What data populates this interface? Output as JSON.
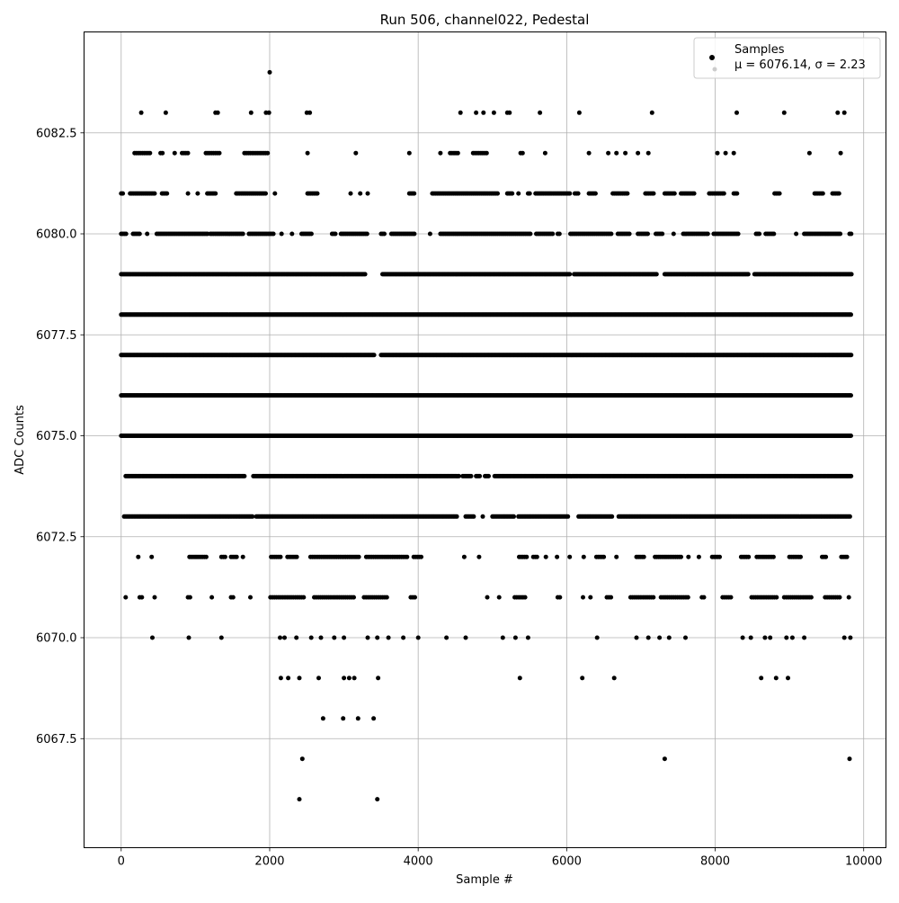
{
  "chart_data": {
    "type": "scatter",
    "title": "Run 506, channel022, Pedestal",
    "xlabel": "Sample #",
    "ylabel": "ADC Counts",
    "xlim": [
      -500,
      10300
    ],
    "ylim": [
      6064.8,
      6085.0
    ],
    "x_ticks": [
      0,
      2000,
      4000,
      6000,
      8000,
      10000
    ],
    "x_tick_labels": [
      "0",
      "2000",
      "4000",
      "6000",
      "8000",
      "10000"
    ],
    "y_ticks": [
      6067.5,
      6070.0,
      6072.5,
      6075.0,
      6077.5,
      6080.0,
      6082.5
    ],
    "y_tick_labels": [
      "6067.5",
      "6070.0",
      "6072.5",
      "6075.0",
      "6077.5",
      "6080.0",
      "6082.5"
    ],
    "grid": true,
    "legend_position": "top-right",
    "legend": {
      "samples_label": "Samples",
      "stats_label": "μ = 6076.14, σ = 2.23"
    },
    "point_color": "#000000",
    "series": [
      {
        "name": "Samples",
        "points": [
          [
            2000,
            6084
          ],
          [
            2400,
            6066
          ],
          [
            3450,
            6066
          ],
          [
            2440,
            6067
          ],
          [
            7320,
            6067
          ],
          [
            9810,
            6067
          ],
          [
            2720,
            6068
          ],
          [
            2990,
            6068
          ],
          [
            3190,
            6068
          ],
          [
            3400,
            6068
          ],
          [
            2150,
            6069
          ],
          [
            2250,
            6069
          ],
          [
            2400,
            6069
          ],
          [
            2660,
            6069
          ],
          [
            3000,
            6069
          ],
          [
            3070,
            6069
          ],
          [
            3140,
            6069
          ],
          [
            3460,
            6069
          ],
          [
            5370,
            6069
          ],
          [
            6210,
            6069
          ],
          [
            6640,
            6069
          ],
          [
            8620,
            6069
          ],
          [
            8820,
            6069
          ],
          [
            8980,
            6069
          ],
          [
            270,
            6083
          ],
          [
            600,
            6083
          ],
          [
            1270,
            6083
          ],
          [
            1300,
            6083
          ],
          [
            1750,
            6083
          ],
          [
            1950,
            6083
          ],
          [
            1990,
            6083
          ],
          [
            2500,
            6083
          ],
          [
            2540,
            6083
          ],
          [
            4570,
            6083
          ],
          [
            4780,
            6083
          ],
          [
            4880,
            6083
          ],
          [
            5020,
            6083
          ],
          [
            5200,
            6083
          ],
          [
            5230,
            6083
          ],
          [
            5640,
            6083
          ],
          [
            6170,
            6083
          ],
          [
            7150,
            6083
          ],
          [
            8290,
            6083
          ],
          [
            8930,
            6083
          ],
          [
            9650,
            6083
          ],
          [
            9740,
            6083
          ],
          [
            420,
            6070
          ],
          [
            910,
            6070
          ],
          [
            1350,
            6070
          ],
          [
            2140,
            6070
          ],
          [
            2200,
            6070
          ],
          [
            2360,
            6070
          ],
          [
            2560,
            6070
          ],
          [
            2690,
            6070
          ],
          [
            2870,
            6070
          ],
          [
            3000,
            6070
          ],
          [
            3320,
            6070
          ],
          [
            3450,
            6070
          ],
          [
            3600,
            6070
          ],
          [
            3800,
            6070
          ],
          [
            4000,
            6070
          ],
          [
            4380,
            6070
          ],
          [
            4640,
            6070
          ],
          [
            5140,
            6070
          ],
          [
            5310,
            6070
          ],
          [
            5480,
            6070
          ],
          [
            6410,
            6070
          ],
          [
            6940,
            6070
          ],
          [
            7100,
            6070
          ],
          [
            7250,
            6070
          ],
          [
            7380,
            6070
          ],
          [
            7600,
            6070
          ],
          [
            8370,
            6070
          ],
          [
            8480,
            6070
          ],
          [
            8670,
            6070
          ],
          [
            8740,
            6070
          ],
          [
            8960,
            6070
          ],
          [
            9040,
            6070
          ],
          [
            9200,
            6070
          ],
          [
            9740,
            6070
          ],
          [
            9820,
            6070
          ]
        ]
      }
    ],
    "dense_levels": [
      {
        "y": 6071,
        "ranges": [
          [
            60,
            60
          ],
          [
            250,
            300
          ],
          [
            450,
            450
          ],
          [
            900,
            950
          ],
          [
            1220,
            1220
          ],
          [
            1480,
            1510
          ],
          [
            1740,
            1740
          ],
          [
            2010,
            2460
          ],
          [
            2600,
            3150
          ],
          [
            3270,
            3600
          ],
          [
            3900,
            3960
          ],
          [
            4930,
            4930
          ],
          [
            5090,
            5090
          ],
          [
            5300,
            5450
          ],
          [
            5880,
            5920
          ],
          [
            6220,
            6220
          ],
          [
            6320,
            6320
          ],
          [
            6540,
            6600
          ],
          [
            6860,
            7170
          ],
          [
            7270,
            7660
          ],
          [
            7820,
            7850
          ],
          [
            8100,
            8220
          ],
          [
            8490,
            8840
          ],
          [
            8930,
            9310
          ],
          [
            9480,
            9680
          ],
          [
            9800,
            9800
          ]
        ],
        "step": 28
      },
      {
        "y": 6072,
        "ranges": [
          [
            230,
            230
          ],
          [
            410,
            410
          ],
          [
            920,
            1150
          ],
          [
            1350,
            1400
          ],
          [
            1480,
            1560
          ],
          [
            1640,
            1640
          ],
          [
            2020,
            2160
          ],
          [
            2240,
            2380
          ],
          [
            2550,
            3200
          ],
          [
            3300,
            3850
          ],
          [
            3940,
            4050
          ],
          [
            4620,
            4620
          ],
          [
            4820,
            4820
          ],
          [
            5360,
            5460
          ],
          [
            5550,
            5620
          ],
          [
            5720,
            5720
          ],
          [
            5870,
            5870
          ],
          [
            6040,
            6040
          ],
          [
            6230,
            6230
          ],
          [
            6400,
            6500
          ],
          [
            6670,
            6670
          ],
          [
            6940,
            7060
          ],
          [
            7190,
            7540
          ],
          [
            7640,
            7640
          ],
          [
            7780,
            7780
          ],
          [
            7960,
            8080
          ],
          [
            8350,
            8450
          ],
          [
            8560,
            8790
          ],
          [
            9000,
            9160
          ],
          [
            9440,
            9500
          ],
          [
            9700,
            9790
          ]
        ],
        "step": 25
      },
      {
        "y": 6073,
        "ranges": [
          [
            40,
            1770
          ],
          [
            1820,
            4520
          ],
          [
            4640,
            4760
          ],
          [
            4870,
            4870
          ],
          [
            5000,
            5290
          ],
          [
            5350,
            6020
          ],
          [
            6160,
            6610
          ],
          [
            6700,
            9820
          ]
        ],
        "step": 18
      },
      {
        "y": 6074,
        "ranges": [
          [
            60,
            1660
          ],
          [
            1780,
            4550
          ],
          [
            4600,
            4720
          ],
          [
            4780,
            4830
          ],
          [
            4900,
            4950
          ],
          [
            5030,
            9830
          ]
        ],
        "step": 16
      },
      {
        "y": 6075,
        "ranges": [
          [
            0,
            9830
          ]
        ],
        "step": 13
      },
      {
        "y": 6076,
        "ranges": [
          [
            0,
            9840
          ]
        ],
        "step": 13
      },
      {
        "y": 6077,
        "ranges": [
          [
            0,
            3410
          ],
          [
            3500,
            9840
          ]
        ],
        "step": 13
      },
      {
        "y": 6078,
        "ranges": [
          [
            0,
            9840
          ]
        ],
        "step": 13
      },
      {
        "y": 6079,
        "ranges": [
          [
            0,
            3290
          ],
          [
            3520,
            6040
          ],
          [
            6100,
            7220
          ],
          [
            7320,
            8450
          ],
          [
            8530,
            9840
          ]
        ],
        "step": 15
      },
      {
        "y": 6080,
        "ranges": [
          [
            0,
            80
          ],
          [
            160,
            250
          ],
          [
            350,
            370
          ],
          [
            480,
            1180
          ],
          [
            1200,
            1660
          ],
          [
            1720,
            2070
          ],
          [
            2160,
            2160
          ],
          [
            2300,
            2300
          ],
          [
            2430,
            2580
          ],
          [
            2840,
            2900
          ],
          [
            2960,
            3320
          ],
          [
            3500,
            3560
          ],
          [
            3640,
            3950
          ],
          [
            4160,
            4160
          ],
          [
            4300,
            5520
          ],
          [
            5590,
            5820
          ],
          [
            5880,
            5920
          ],
          [
            6050,
            6600
          ],
          [
            6690,
            6860
          ],
          [
            6960,
            7100
          ],
          [
            7200,
            7300
          ],
          [
            7440,
            7440
          ],
          [
            7570,
            7900
          ],
          [
            7980,
            8310
          ],
          [
            8550,
            8600
          ],
          [
            8680,
            8800
          ],
          [
            9090,
            9090
          ],
          [
            9200,
            9700
          ],
          [
            9810,
            9850
          ]
        ],
        "step": 22
      },
      {
        "y": 6081,
        "ranges": [
          [
            0,
            30
          ],
          [
            120,
            450
          ],
          [
            550,
            620
          ],
          [
            900,
            920
          ],
          [
            1030,
            1050
          ],
          [
            1160,
            1270
          ],
          [
            1550,
            1960
          ],
          [
            2070,
            2070
          ],
          [
            2510,
            2660
          ],
          [
            3090,
            3090
          ],
          [
            3220,
            3220
          ],
          [
            3320,
            3320
          ],
          [
            3880,
            3950
          ],
          [
            4190,
            5070
          ],
          [
            5200,
            5280
          ],
          [
            5350,
            5350
          ],
          [
            5480,
            5520
          ],
          [
            5580,
            6060
          ],
          [
            6110,
            6170
          ],
          [
            6300,
            6400
          ],
          [
            6620,
            6820
          ],
          [
            7060,
            7180
          ],
          [
            7320,
            7460
          ],
          [
            7540,
            7720
          ],
          [
            7920,
            8120
          ],
          [
            8250,
            8310
          ],
          [
            8800,
            8880
          ],
          [
            9340,
            9460
          ],
          [
            9580,
            9680
          ]
        ],
        "step": 22
      },
      {
        "y": 6082,
        "ranges": [
          [
            180,
            400
          ],
          [
            530,
            560
          ],
          [
            720,
            720
          ],
          [
            820,
            900
          ],
          [
            1140,
            1340
          ],
          [
            1660,
            1990
          ],
          [
            2510,
            2510
          ],
          [
            3160,
            3160
          ],
          [
            3880,
            3880
          ],
          [
            4300,
            4300
          ],
          [
            4430,
            4540
          ],
          [
            4740,
            4940
          ],
          [
            5380,
            5420
          ],
          [
            5710,
            5710
          ],
          [
            6300,
            6300
          ],
          [
            6560,
            6560
          ],
          [
            6670,
            6670
          ],
          [
            6790,
            6790
          ],
          [
            6960,
            6960
          ],
          [
            7100,
            7100
          ],
          [
            8030,
            8030
          ],
          [
            8140,
            8140
          ],
          [
            8250,
            8250
          ],
          [
            9270,
            9270
          ],
          [
            9690,
            9690
          ]
        ],
        "step": 26
      }
    ]
  }
}
